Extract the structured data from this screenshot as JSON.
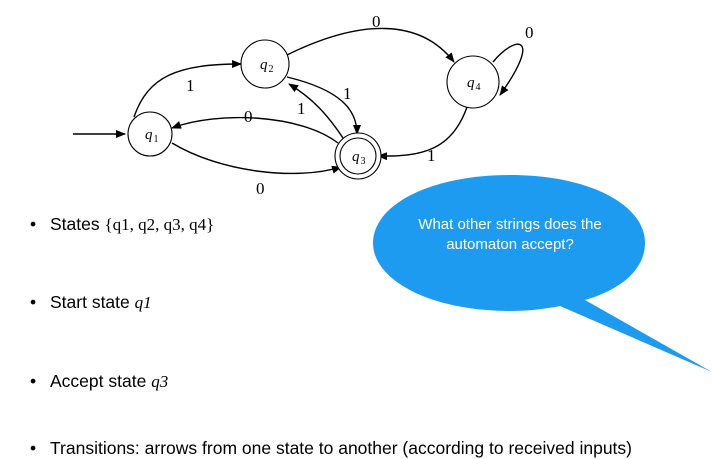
{
  "diagram": {
    "states": [
      {
        "id": "q1",
        "name": "q",
        "sub": "1"
      },
      {
        "id": "q2",
        "name": "q",
        "sub": "2"
      },
      {
        "id": "q3",
        "name": "q",
        "sub": "3",
        "accept": true
      },
      {
        "id": "q4",
        "name": "q",
        "sub": "4"
      }
    ],
    "transitions": [
      {
        "from": "q1",
        "to": "q2",
        "label": "1"
      },
      {
        "from": "q3",
        "to": "q1",
        "label": "0"
      },
      {
        "from": "q1",
        "to": "q3",
        "label": "0"
      },
      {
        "from": "q2",
        "to": "q3",
        "label": "1"
      },
      {
        "from": "q3",
        "to": "q2",
        "label": "1"
      },
      {
        "from": "q2",
        "to": "q4",
        "label": "0"
      },
      {
        "from": "q4",
        "to": "q4",
        "label": "0"
      },
      {
        "from": "q4",
        "to": "q3",
        "label": "1"
      }
    ],
    "start_state": "q1"
  },
  "bullets": {
    "states_label": "States",
    "states_set": "{q1, q2, q3, q4}",
    "start_label": "Start state",
    "start_value": "q1",
    "accept_label": "Accept state",
    "accept_value": "q3",
    "transitions_text": "Transitions: arrows from one state to another (according to received inputs)"
  },
  "bubble": {
    "text": "What other strings does the automaton accept?",
    "color": "#1d9bf0"
  }
}
